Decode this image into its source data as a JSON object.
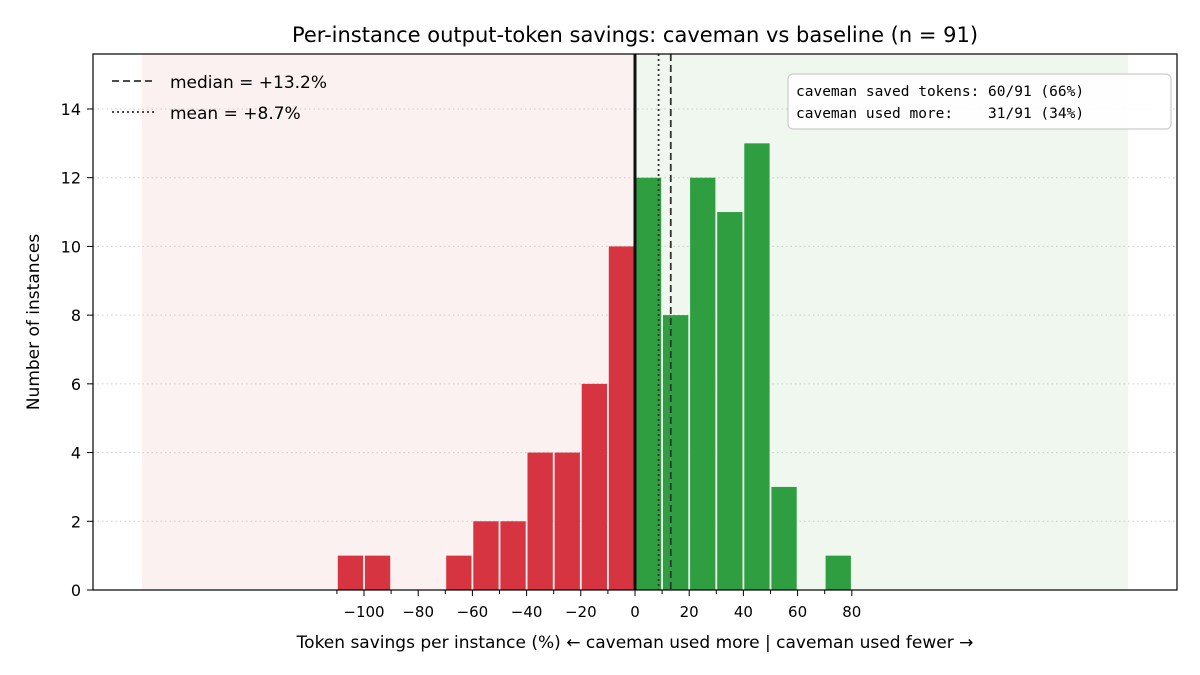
{
  "chart_data": {
    "type": "bar",
    "title": "Per-instance output-token savings: caveman vs baseline  (n = 91)",
    "xlabel": "Token savings per instance (%)  ← caveman used more | caveman used fewer →",
    "ylabel": "Number of instances",
    "xlim": [
      -200,
      200
    ],
    "ylim": [
      0,
      15.6
    ],
    "bin_width": 10,
    "bins": [
      {
        "x0": -110,
        "x1": -100,
        "count": 1
      },
      {
        "x0": -100,
        "x1": -90,
        "count": 1
      },
      {
        "x0": -90,
        "x1": -80,
        "count": 0
      },
      {
        "x0": -80,
        "x1": -70,
        "count": 0
      },
      {
        "x0": -70,
        "x1": -60,
        "count": 1
      },
      {
        "x0": -60,
        "x1": -50,
        "count": 2
      },
      {
        "x0": -50,
        "x1": -40,
        "count": 2
      },
      {
        "x0": -40,
        "x1": -30,
        "count": 4
      },
      {
        "x0": -30,
        "x1": -20,
        "count": 4
      },
      {
        "x0": -20,
        "x1": -10,
        "count": 6
      },
      {
        "x0": -10,
        "x1": 0,
        "count": 10
      },
      {
        "x0": 0,
        "x1": 10,
        "count": 12
      },
      {
        "x0": 10,
        "x1": 20,
        "count": 8
      },
      {
        "x0": 20,
        "x1": 30,
        "count": 12
      },
      {
        "x0": 30,
        "x1": 40,
        "count": 11
      },
      {
        "x0": 40,
        "x1": 50,
        "count": 13
      },
      {
        "x0": 50,
        "x1": 60,
        "count": 3
      },
      {
        "x0": 60,
        "x1": 70,
        "count": 0
      },
      {
        "x0": 70,
        "x1": 80,
        "count": 1
      }
    ],
    "x_ticks_major": [
      {
        "value": -100,
        "label": "−100"
      },
      {
        "value": -80,
        "label": "−80"
      },
      {
        "value": -60,
        "label": "−60"
      },
      {
        "value": -40,
        "label": "−40"
      },
      {
        "value": -20,
        "label": "−20"
      },
      {
        "value": 0,
        "label": "0"
      },
      {
        "value": 20,
        "label": "20"
      },
      {
        "value": 40,
        "label": "40"
      },
      {
        "value": 60,
        "label": "60"
      },
      {
        "value": 80,
        "label": "80"
      }
    ],
    "x_ticks_minor": [
      -110,
      -90,
      -70,
      -50,
      -30,
      -10,
      10,
      30,
      50,
      70
    ],
    "y_ticks": [
      0,
      2,
      4,
      6,
      8,
      10,
      12,
      14
    ],
    "shaded_regions": [
      {
        "from": -200,
        "to": 0,
        "color": "#fbf1f0"
      },
      {
        "from": 0,
        "to": 200,
        "color": "#f0f7ef"
      }
    ],
    "reference_lines": [
      {
        "x": 0,
        "style": "solid",
        "label": ""
      },
      {
        "x": 13.2,
        "style": "dashed",
        "label": "median = +13.2%"
      },
      {
        "x": 8.7,
        "style": "dotted",
        "label": "mean = +8.7%"
      }
    ],
    "legend": {
      "placement": "top-left",
      "entries": [
        {
          "style": "dashed",
          "label": "median = +13.2%"
        },
        {
          "style": "dotted",
          "label": "mean = +8.7%"
        }
      ]
    },
    "annotation": {
      "placement": "top-right",
      "lines": [
        "caveman saved tokens: 60/91 (66%)",
        "caveman used more:    31/91 (34%)"
      ]
    },
    "colors": {
      "negative": "#d63440",
      "positive": "#2e9e41",
      "zero_line": "#111111",
      "ref_line": "#333333",
      "grid": "#cccccc"
    },
    "grid": "horizontal-dotted"
  }
}
